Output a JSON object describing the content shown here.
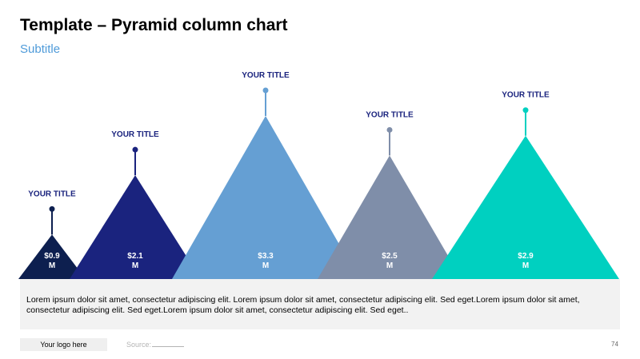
{
  "header": {
    "title": "Template – Pyramid column chart",
    "subtitle": "Subtitle"
  },
  "chart_data": {
    "type": "bar",
    "variant": "pyramid",
    "categories": [
      "YOUR TITLE",
      "YOUR TITLE",
      "YOUR TITLE",
      "YOUR TITLE",
      "YOUR TITLE"
    ],
    "values": [
      0.9,
      2.1,
      3.3,
      2.5,
      2.9
    ],
    "value_labels": [
      [
        "$0.9",
        "M"
      ],
      [
        "$2.1",
        "M"
      ],
      [
        "$3.3",
        "M"
      ],
      [
        "$2.5",
        "M"
      ],
      [
        "$2.9",
        "M"
      ]
    ],
    "colors": [
      "#0d1f4f",
      "#1a237e",
      "#659fd3",
      "#7f8ea9",
      "#00d0c0"
    ],
    "ylim": [
      0,
      3.3
    ]
  },
  "body_text": "Lorem ipsum dolor sit amet, consectetur adipiscing elit. Lorem ipsum dolor sit amet, consectetur adipiscing elit. Sed eget.Lorem ipsum dolor sit amet, consectetur adipiscing elit. Sed eget.Lorem ipsum dolor sit amet, consectetur adipiscing elit. Sed eget..",
  "footer": {
    "logo": "Your logo here",
    "source": "Source:",
    "page_number": "74"
  },
  "colors": {
    "title_text": "#000000",
    "category_label": "#1a237e",
    "subtitle": "#4f9bd9",
    "text_box_bg": "#f2f2f2"
  }
}
